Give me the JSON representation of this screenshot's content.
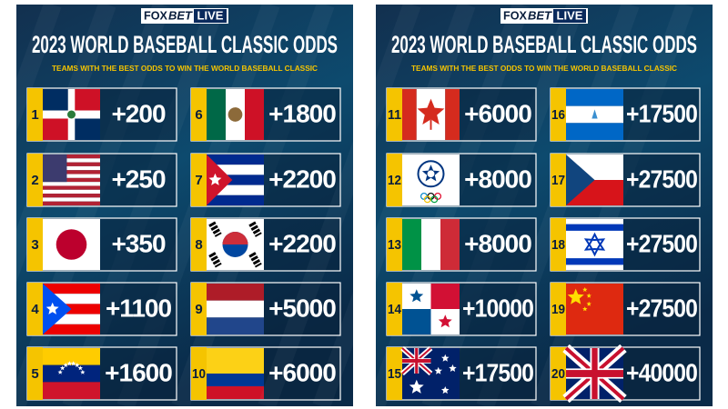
{
  "panels": [
    {
      "logo": {
        "fox": "FOX",
        "bet": "BET",
        "live": "LIVE"
      },
      "title": "2023 WORLD BASEBALL CLASSIC ODDS",
      "subtitle": "TEAMS WITH THE BEST ODDS TO WIN THE WORLD BASEBALL CLASSIC",
      "entries": [
        {
          "rank": "1",
          "odds": "+200"
        },
        {
          "rank": "2",
          "odds": "+250"
        },
        {
          "rank": "3",
          "odds": "+350"
        },
        {
          "rank": "4",
          "odds": "+1100"
        },
        {
          "rank": "5",
          "odds": "+1600"
        },
        {
          "rank": "6",
          "odds": "+1800"
        },
        {
          "rank": "7",
          "odds": "+2200"
        },
        {
          "rank": "8",
          "odds": "+2200"
        },
        {
          "rank": "9",
          "odds": "+5000"
        },
        {
          "rank": "10",
          "odds": "+6000"
        }
      ]
    },
    {
      "logo": {
        "fox": "FOX",
        "bet": "BET",
        "live": "LIVE"
      },
      "title": "2023 WORLD BASEBALL CLASSIC ODDS",
      "subtitle": "TEAMS WITH THE BEST ODDS TO WIN THE WORLD BASEBALL CLASSIC",
      "entries": [
        {
          "rank": "11",
          "odds": "+6000"
        },
        {
          "rank": "12",
          "odds": "+8000"
        },
        {
          "rank": "13",
          "odds": "+8000"
        },
        {
          "rank": "14",
          "odds": "+10000"
        },
        {
          "rank": "15",
          "odds": "+17500"
        },
        {
          "rank": "16",
          "odds": "+17500"
        },
        {
          "rank": "17",
          "odds": "+27500"
        },
        {
          "rank": "18",
          "odds": "+27500"
        },
        {
          "rank": "19",
          "odds": "+27500"
        },
        {
          "rank": "20",
          "odds": "+40000"
        }
      ]
    }
  ]
}
